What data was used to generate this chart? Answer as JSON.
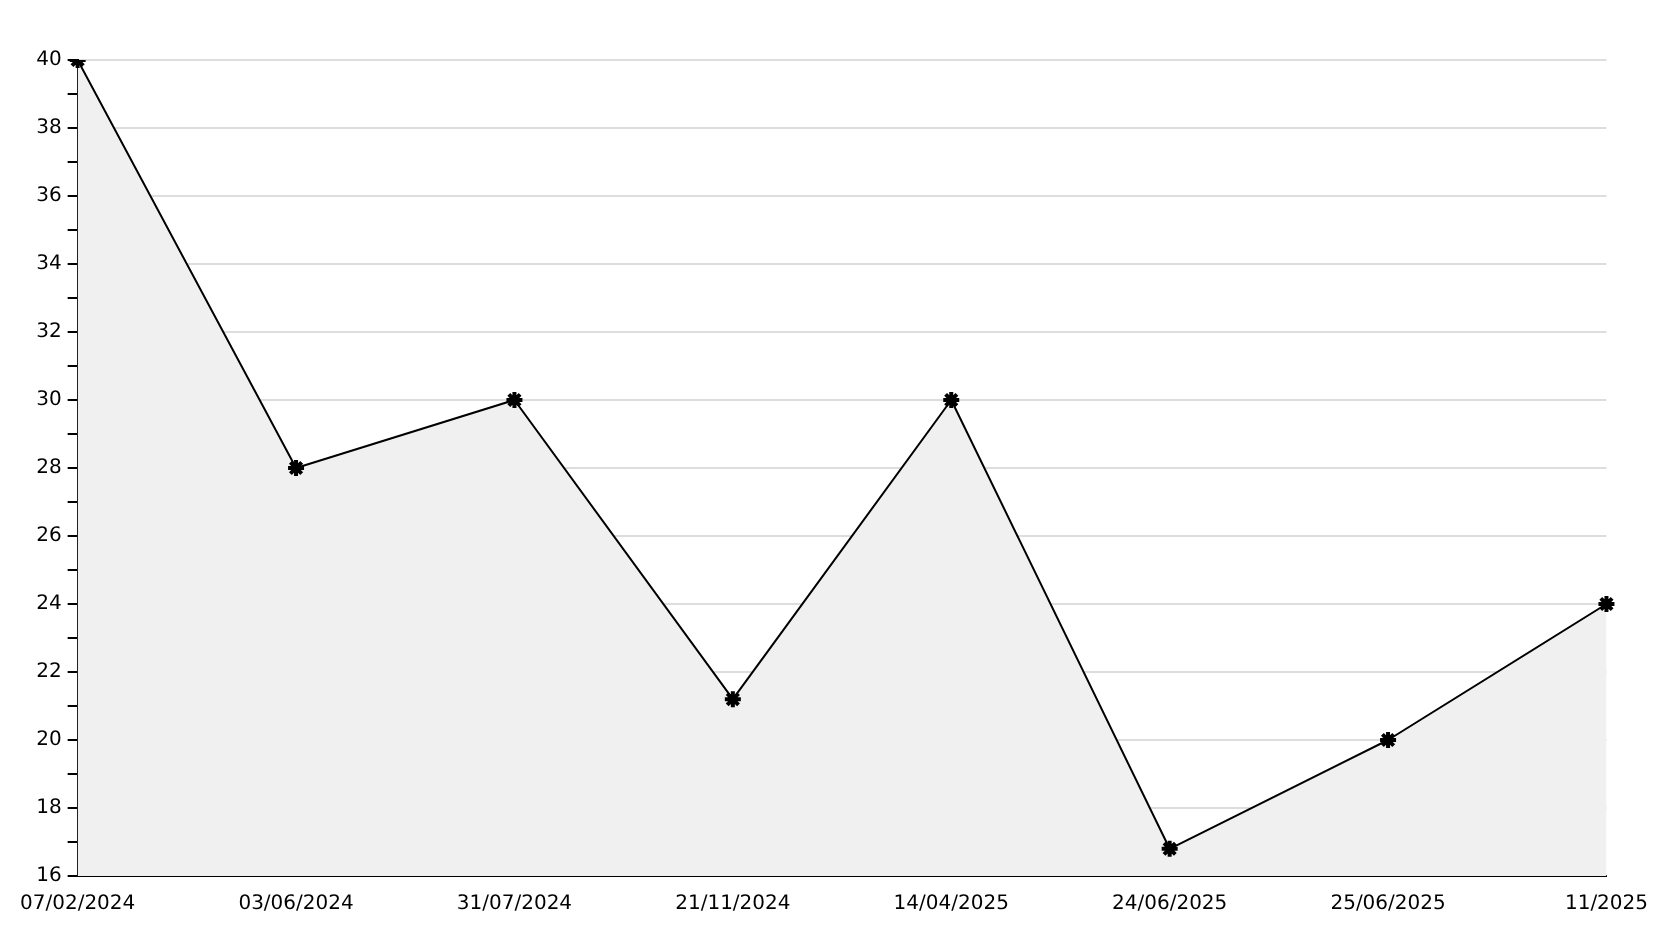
{
  "chart_data": {
    "type": "area",
    "categories": [
      "07/02/2024",
      "03/06/2024",
      "31/07/2024",
      "21/11/2024",
      "14/04/2025",
      "24/06/2025",
      "25/06/2025",
      "11/2025"
    ],
    "series": [
      {
        "color": "#000000",
        "values": [
          40,
          28,
          30,
          21.2,
          30,
          16.8,
          20,
          24
        ]
      }
    ],
    "ylim": [
      16,
      40
    ],
    "yticks": [
      16,
      {
        "value": 17,
        "label": null
      },
      18,
      {
        "value": 19,
        "label": null
      },
      20,
      {
        "value": 21,
        "label": null
      },
      22,
      {
        "value": 23,
        "label": null
      },
      24,
      {
        "value": 25,
        "label": null
      },
      26,
      {
        "value": 27,
        "label": null
      },
      28,
      {
        "value": 29,
        "label": null
      },
      30,
      {
        "value": 31,
        "label": null
      },
      32,
      {
        "value": 33,
        "label": null
      },
      34,
      {
        "value": 35,
        "label": null
      },
      36,
      {
        "value": 37,
        "label": null
      },
      38,
      {
        "value": 39,
        "label": null
      },
      40
    ],
    "grid": "y",
    "legend": false,
    "marker": "cross",
    "line_style": "solid"
  }
}
